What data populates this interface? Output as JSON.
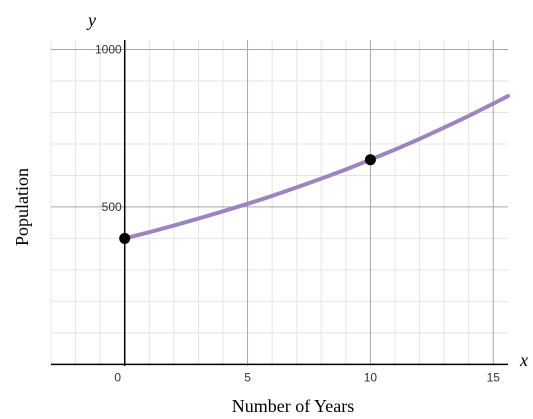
{
  "chart_data": {
    "type": "line",
    "title": "",
    "xlabel": "Number of Years",
    "ylabel": "Population",
    "x_axis_variable": "x",
    "y_axis_variable": "y",
    "xlim": [
      -3,
      15.6
    ],
    "ylim": [
      -5,
      1030
    ],
    "x_ticks": [
      {
        "value": 0,
        "label": "0"
      },
      {
        "value": 5,
        "label": "5"
      },
      {
        "value": 10,
        "label": "10"
      },
      {
        "value": 15,
        "label": "15"
      }
    ],
    "y_ticks": [
      {
        "value": 500,
        "label": "500"
      },
      {
        "value": 1000,
        "label": "1000"
      }
    ],
    "grid": true,
    "minor_grid_step": {
      "x": 1,
      "y": 100
    },
    "series": [
      {
        "kind": "curve",
        "color": "#9b85bf",
        "x": [
          0,
          1,
          2,
          3,
          4,
          5,
          6,
          7,
          8,
          9,
          10,
          11,
          12,
          13,
          14,
          15,
          15.6
        ],
        "y": [
          400,
          420,
          441,
          463,
          486,
          510,
          535,
          562,
          590,
          619,
          650,
          682,
          716,
          752,
          789,
          828,
          852
        ]
      }
    ],
    "points": [
      {
        "x": 0,
        "y": 400,
        "color": "#000000"
      },
      {
        "x": 10,
        "y": 650,
        "color": "#000000"
      }
    ],
    "colors": {
      "curve": "#9b85bf",
      "major_grid": "#a6a6a6",
      "minor_grid": "#e4e4e4",
      "axis": "#000000"
    }
  }
}
